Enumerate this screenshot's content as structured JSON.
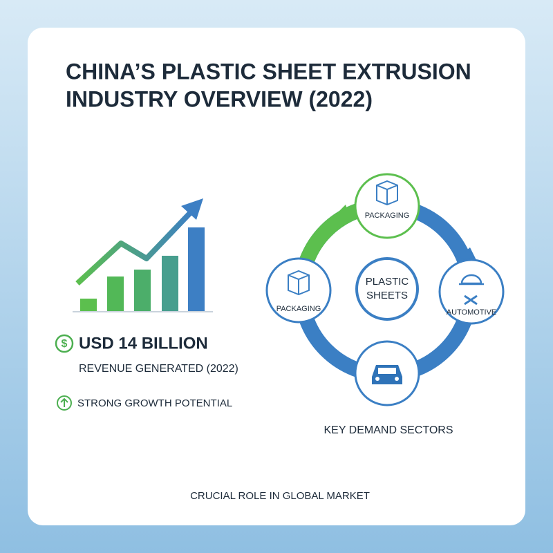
{
  "title": [
    "CHINA’S PLASTIC SHEET EXTRUSION",
    "INDUSTRY OVERVIEW (2022)"
  ],
  "revenue": {
    "value": "USD 14 BILLION",
    "label": "REVENUE GENERATED (2022)"
  },
  "growth": "STRONG GROWTH POTENTIAL",
  "cycle": {
    "center": [
      "PLASTIC",
      "SHEETS"
    ],
    "nodes": [
      {
        "label": "PACKAGING"
      },
      {
        "label": "AUTOMOTIVE"
      },
      {
        "label": null
      },
      {
        "label": "PACKAGING"
      }
    ],
    "caption": "KEY DEMAND SECTORS"
  },
  "footer": "CRUCIAL ROLE IN GLOBAL MARKET"
}
